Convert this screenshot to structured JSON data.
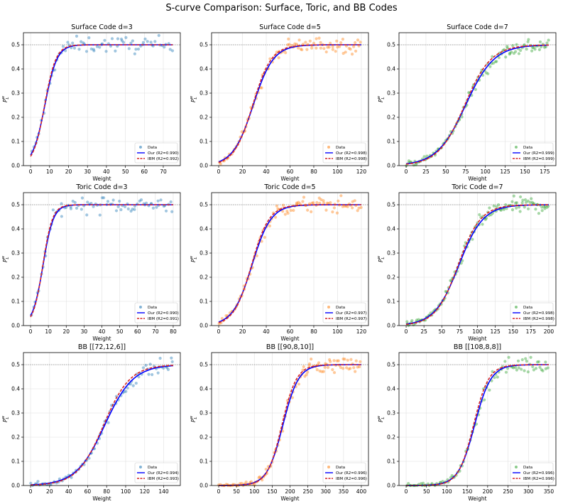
{
  "figure": {
    "title": "S-curve Comparison: Surface, Toric, and BB Codes",
    "xlabel": "Weight",
    "ylabel_base": "P",
    "ylabel_sub": "L",
    "ylabel_sup": "w",
    "legend_labels": {
      "data": "Data"
    }
  },
  "colors": {
    "blue_data": "#1f77b4",
    "orange_data": "#ff7f0e",
    "green_data": "#2ca02c",
    "our_fit": "#0000ff",
    "ibm_fit": "#d62728",
    "grid": "#e0e0e0",
    "ref_line": "#888888"
  },
  "chart_data": [
    {
      "type": "scatter",
      "title": "Surface Code d=3",
      "color": "blue_data",
      "xlim": [
        -3.8,
        79
      ],
      "ylim": [
        0,
        0.55
      ],
      "xticks": [
        0,
        10,
        20,
        30,
        40,
        50,
        60,
        70
      ],
      "yticks": [
        0.0,
        0.1,
        0.2,
        0.3,
        0.4,
        0.5
      ],
      "our_label": "Our (R2=0.990)",
      "ibm_label": "IBM (R2=0.992)",
      "curve": {
        "midpoint": 7.5,
        "width": 3.2
      },
      "x_max": 75,
      "n_points": 72,
      "reference_line": 0.5,
      "legend": "lower-right"
    },
    {
      "type": "scatter",
      "title": "Surface Code d=5",
      "color": "orange_data",
      "xlim": [
        -6,
        126
      ],
      "ylim": [
        0,
        0.55
      ],
      "xticks": [
        0,
        20,
        40,
        60,
        80,
        100,
        120
      ],
      "yticks": [
        0.0,
        0.1,
        0.2,
        0.3,
        0.4,
        0.5
      ],
      "our_label": "Our (R2=0.998)",
      "ibm_label": "IBM (R2=0.998)",
      "curve": {
        "midpoint": 29,
        "width": 8.5
      },
      "x_max": 120,
      "n_points": 95,
      "reference_line": 0.5,
      "legend": "lower-right"
    },
    {
      "type": "scatter",
      "title": "Surface Code d=7",
      "color": "green_data",
      "xlim": [
        -9,
        189
      ],
      "ylim": [
        0,
        0.55
      ],
      "xticks": [
        0,
        25,
        50,
        75,
        100,
        125,
        150,
        175
      ],
      "yticks": [
        0.0,
        0.1,
        0.2,
        0.3,
        0.4,
        0.5
      ],
      "our_label": "Our (R2=0.999)",
      "ibm_label": "IBM (R2=0.999)",
      "curve": {
        "midpoint": 75,
        "width": 18
      },
      "x_max": 180,
      "n_points": 110,
      "reference_line": 0.5,
      "legend": "lower-right"
    },
    {
      "type": "scatter",
      "title": "Toric Code d=3",
      "color": "blue_data",
      "xlim": [
        -4,
        84
      ],
      "ylim": [
        0,
        0.55
      ],
      "xticks": [
        0,
        10,
        20,
        30,
        40,
        50,
        60,
        70,
        80
      ],
      "yticks": [
        0.0,
        0.1,
        0.2,
        0.3,
        0.4,
        0.5
      ],
      "our_label": "Our (R2=0.990)",
      "ibm_label": "IBM (R2=0.991)",
      "curve": {
        "midpoint": 7.0,
        "width": 2.9
      },
      "x_max": 80,
      "n_points": 78,
      "reference_line": 0.5,
      "legend": "lower-right"
    },
    {
      "type": "scatter",
      "title": "Toric Code d=5",
      "color": "orange_data",
      "xlim": [
        -6,
        126
      ],
      "ylim": [
        0,
        0.55
      ],
      "xticks": [
        0,
        20,
        40,
        60,
        80,
        100,
        120
      ],
      "yticks": [
        0.0,
        0.1,
        0.2,
        0.3,
        0.4,
        0.5
      ],
      "our_label": "Our (R2=0.997)",
      "ibm_label": "IBM (R2=0.997)",
      "curve": {
        "midpoint": 28,
        "width": 8.0
      },
      "x_max": 120,
      "n_points": 95,
      "reference_line": 0.5,
      "legend": "lower-right"
    },
    {
      "type": "scatter",
      "title": "Toric Code d=7",
      "color": "green_data",
      "xlim": [
        -10,
        210
      ],
      "ylim": [
        0,
        0.55
      ],
      "xticks": [
        0,
        25,
        50,
        75,
        100,
        125,
        150,
        175,
        200
      ],
      "yticks": [
        0.0,
        0.1,
        0.2,
        0.3,
        0.4,
        0.5
      ],
      "our_label": "Our (R2=0.998)",
      "ibm_label": "IBM (R2=0.998)",
      "curve": {
        "midpoint": 74,
        "width": 17
      },
      "x_max": 200,
      "n_points": 125,
      "reference_line": 0.5,
      "legend": "lower-right"
    },
    {
      "type": "scatter",
      "title": "BB [[72,12,6]]",
      "color": "blue_data",
      "xlim": [
        -7.5,
        157.5
      ],
      "ylim": [
        0,
        0.55
      ],
      "xticks": [
        0,
        20,
        40,
        60,
        80,
        100,
        120,
        140
      ],
      "yticks": [
        0.0,
        0.1,
        0.2,
        0.3,
        0.4,
        0.5
      ],
      "our_label": "Our (R2=0.994)",
      "ibm_label": "IBM (R2=0.993)",
      "curve": {
        "midpoint": 78,
        "width": 15
      },
      "x_max": 150,
      "n_points": 85,
      "reference_line": 0.5,
      "legend": "lower-right"
    },
    {
      "type": "scatter",
      "title": "BB [[90,8,10]]",
      "color": "orange_data",
      "xlim": [
        -20,
        420
      ],
      "ylim": [
        0,
        0.55
      ],
      "xticks": [
        0,
        50,
        100,
        150,
        200,
        250,
        300,
        350,
        400
      ],
      "yticks": [
        0.0,
        0.1,
        0.2,
        0.3,
        0.4,
        0.5
      ],
      "our_label": "Our (R2=0.996)",
      "ibm_label": "IBM (R2=0.996)",
      "curve": {
        "midpoint": 180,
        "width": 22
      },
      "x_max": 400,
      "n_points": 110,
      "reference_line": 0.5,
      "legend": "lower-right"
    },
    {
      "type": "scatter",
      "title": "BB [[108,8,8]]",
      "color": "green_data",
      "xlim": [
        -17.5,
        367.5
      ],
      "ylim": [
        0,
        0.55
      ],
      "xticks": [
        0,
        50,
        100,
        150,
        200,
        250,
        300,
        350
      ],
      "yticks": [
        0.0,
        0.1,
        0.2,
        0.3,
        0.4,
        0.5
      ],
      "our_label": "Our (R2=0.996)",
      "ibm_label": "IBM (R2=0.996)",
      "curve": {
        "midpoint": 168,
        "width": 20
      },
      "x_max": 350,
      "n_points": 95,
      "reference_line": 0.5,
      "legend": "lower-right"
    }
  ]
}
